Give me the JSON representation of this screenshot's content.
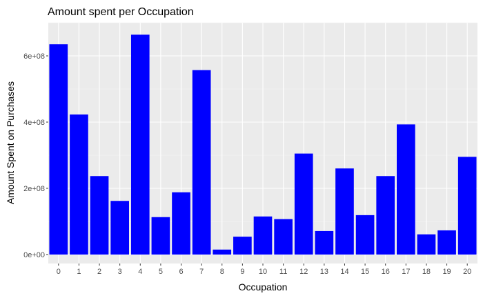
{
  "chart_data": {
    "type": "bar",
    "title": "Amount spent per Occupation",
    "xlabel": "Occupation",
    "ylabel": "Amount Spent on Purchases",
    "categories": [
      "0",
      "1",
      "2",
      "3",
      "4",
      "5",
      "6",
      "7",
      "8",
      "9",
      "10",
      "11",
      "12",
      "13",
      "14",
      "15",
      "16",
      "17",
      "18",
      "19",
      "20"
    ],
    "values": [
      635000000,
      423000000,
      237000000,
      162000000,
      664000000,
      113000000,
      188000000,
      557000000,
      15000000,
      54000000,
      115000000,
      107000000,
      305000000,
      71000000,
      260000000,
      119000000,
      237000000,
      393000000,
      61000000,
      73000000,
      295000000
    ],
    "bar_color": "#0000ff",
    "ylim": [
      0,
      700000000
    ],
    "yticks": [
      0,
      200000000,
      400000000,
      600000000
    ],
    "ytick_labels": [
      "0e+00",
      "2e+08",
      "4e+08",
      "6e+08"
    ],
    "grid": true,
    "legend": "none"
  }
}
